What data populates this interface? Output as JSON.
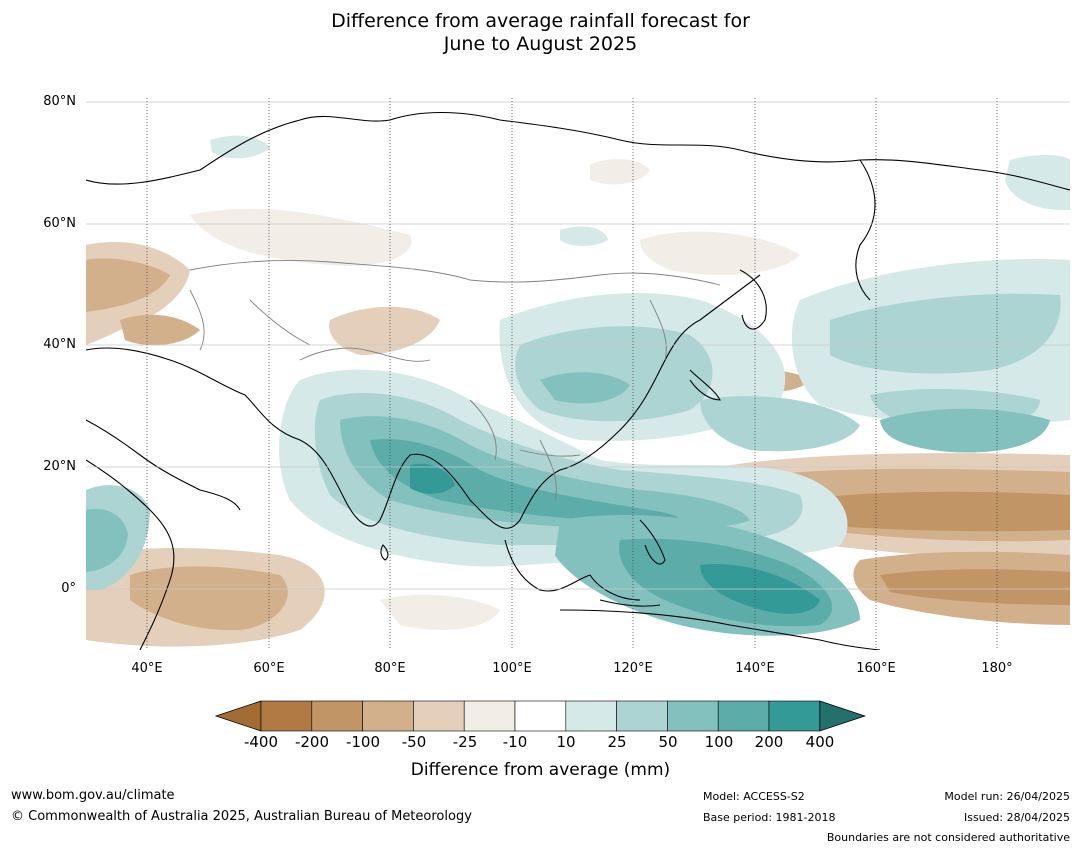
{
  "title_line1": "Difference from average rainfall forecast for",
  "title_line2": "June to August 2025",
  "latitude_labels": [
    "80°N",
    "60°N",
    "40°N",
    "20°N",
    "0°"
  ],
  "longitude_labels": [
    "40°E",
    "60°E",
    "80°E",
    "100°E",
    "120°E",
    "140°E",
    "160°E",
    "180°"
  ],
  "colorbar": {
    "label": "Difference from average (mm)",
    "ticks": [
      "-400",
      "-200",
      "-100",
      "-50",
      "-25",
      "-10",
      "10",
      "25",
      "50",
      "100",
      "200",
      "400"
    ],
    "colors": [
      "#a36c35",
      "#b07a44",
      "#c29566",
      "#d3b08c",
      "#e4d0ba",
      "#f2ede6",
      "#ffffff",
      "#d5e9e8",
      "#abd4d3",
      "#83c1bf",
      "#5cadaa",
      "#339a97",
      "#24706c"
    ]
  },
  "footer": {
    "url": "www.bom.gov.au/climate",
    "copyright": "© Commonwealth of Australia 2025, Australian Bureau of Meteorology",
    "model": "Model: ACCESS-S2",
    "base_period": "Base period: 1981-2018",
    "model_run": "Model run: 26/04/2025",
    "issued": "Issued: 28/04/2025",
    "disclaimer": "Boundaries are not considered authoritative"
  },
  "map_extent": {
    "lon_min": 30,
    "lon_max": 192,
    "lat_min": -10,
    "lat_max": 80
  }
}
